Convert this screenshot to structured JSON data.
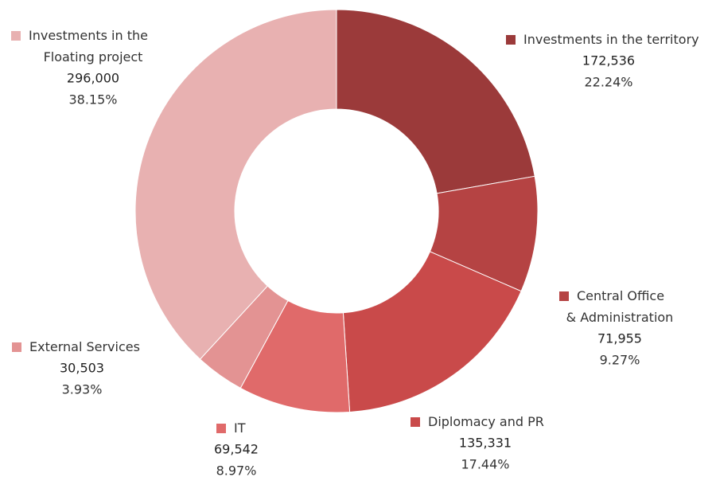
{
  "chart_data": {
    "type": "donut",
    "categories": [
      "Investments in the territory",
      "Central Office\n& Administration",
      "Diplomacy and PR",
      "IT",
      "External Services",
      "Investments in the\nFloating project"
    ],
    "values": [
      172536,
      71955,
      135331,
      69542,
      30503,
      296000
    ],
    "value_labels": [
      "172,536",
      "71,955",
      "135,331",
      "69,542",
      "30,503",
      "296,000"
    ],
    "percentages": [
      22.24,
      9.27,
      17.44,
      8.97,
      3.93,
      38.15
    ],
    "percentage_labels": [
      "22.24%",
      "9.27%",
      "17.44%",
      "8.97%",
      "3.93%",
      "38.15%"
    ],
    "colors": [
      "#9b3a3a",
      "#b54343",
      "#c94a4a",
      "#e06a6a",
      "#e39393",
      "#e8b1b1"
    ]
  }
}
